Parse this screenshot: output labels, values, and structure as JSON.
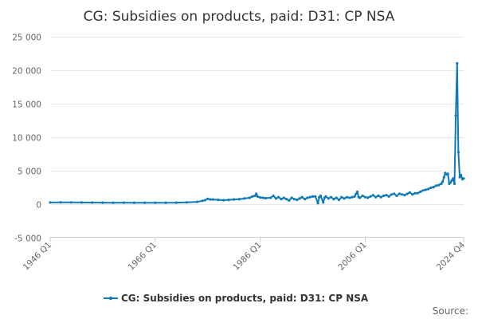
{
  "chart_data": {
    "type": "line",
    "title": "CG: Subsidies on products, paid: D31: CP NSA",
    "xlabel": "",
    "ylabel": "",
    "x_range": [
      "1946 Q1",
      "2024 Q4"
    ],
    "ylim": [
      -5000,
      25000
    ],
    "y_ticks": [
      -5000,
      0,
      5000,
      10000,
      15000,
      20000,
      25000
    ],
    "y_tick_labels": [
      "-5 000",
      "0",
      "5 000",
      "10 000",
      "15 000",
      "20 000",
      "25 000"
    ],
    "x_ticks": [
      {
        "label": "1946 Q1",
        "t": 1946.0
      },
      {
        "label": "1966 Q1",
        "t": 1966.0
      },
      {
        "label": "1986 Q1",
        "t": 1986.0
      },
      {
        "label": "2006 Q1",
        "t": 2006.0
      },
      {
        "label": "2024 Q4",
        "t": 2024.75
      }
    ],
    "grid": true,
    "legend_position": "bottom",
    "series": [
      {
        "name": "CG: Subsidies on products, paid: D31: CP NSA",
        "color": "#0e7ab8",
        "points": [
          [
            1946.0,
            200
          ],
          [
            1948.0,
            230
          ],
          [
            1950.0,
            210
          ],
          [
            1952.0,
            200
          ],
          [
            1954.0,
            190
          ],
          [
            1956.0,
            180
          ],
          [
            1958.0,
            170
          ],
          [
            1960.0,
            180
          ],
          [
            1962.0,
            170
          ],
          [
            1964.0,
            160
          ],
          [
            1966.0,
            170
          ],
          [
            1968.0,
            160
          ],
          [
            1970.0,
            180
          ],
          [
            1972.0,
            230
          ],
          [
            1974.0,
            300
          ],
          [
            1975.0,
            450
          ],
          [
            1975.5,
            550
          ],
          [
            1976.0,
            750
          ],
          [
            1976.5,
            650
          ],
          [
            1977.0,
            650
          ],
          [
            1978.0,
            600
          ],
          [
            1979.0,
            550
          ],
          [
            1980.0,
            600
          ],
          [
            1981.0,
            650
          ],
          [
            1982.0,
            700
          ],
          [
            1983.0,
            800
          ],
          [
            1984.0,
            900
          ],
          [
            1984.5,
            1100
          ],
          [
            1985.0,
            1200
          ],
          [
            1985.25,
            1500
          ],
          [
            1985.5,
            1100
          ],
          [
            1986.0,
            950
          ],
          [
            1986.5,
            900
          ],
          [
            1987.0,
            850
          ],
          [
            1988.0,
            900
          ],
          [
            1988.5,
            1200
          ],
          [
            1989.0,
            800
          ],
          [
            1989.5,
            1000
          ],
          [
            1990.0,
            700
          ],
          [
            1990.5,
            900
          ],
          [
            1991.0,
            700
          ],
          [
            1991.5,
            500
          ],
          [
            1992.0,
            900
          ],
          [
            1992.5,
            700
          ],
          [
            1993.0,
            600
          ],
          [
            1993.5,
            800
          ],
          [
            1994.0,
            1000
          ],
          [
            1994.5,
            700
          ],
          [
            1995.0,
            900
          ],
          [
            1995.5,
            1000
          ],
          [
            1996.0,
            1100
          ],
          [
            1996.5,
            1100
          ],
          [
            1997.0,
            100
          ],
          [
            1997.25,
            1000
          ],
          [
            1997.5,
            1200
          ],
          [
            1998.0,
            200
          ],
          [
            1998.25,
            900
          ],
          [
            1998.5,
            1100
          ],
          [
            1999.0,
            800
          ],
          [
            1999.5,
            1000
          ],
          [
            2000.0,
            700
          ],
          [
            2000.5,
            900
          ],
          [
            2001.0,
            600
          ],
          [
            2001.5,
            1000
          ],
          [
            2002.0,
            800
          ],
          [
            2002.5,
            1000
          ],
          [
            2003.0,
            900
          ],
          [
            2003.5,
            1000
          ],
          [
            2004.0,
            1100
          ],
          [
            2004.25,
            1500
          ],
          [
            2004.5,
            1800
          ],
          [
            2004.75,
            1000
          ],
          [
            2005.0,
            900
          ],
          [
            2005.5,
            1200
          ],
          [
            2006.0,
            1000
          ],
          [
            2006.5,
            900
          ],
          [
            2007.0,
            1100
          ],
          [
            2007.5,
            1300
          ],
          [
            2008.0,
            1000
          ],
          [
            2008.5,
            1200
          ],
          [
            2009.0,
            1000
          ],
          [
            2009.5,
            1200
          ],
          [
            2010.0,
            1300
          ],
          [
            2010.5,
            1100
          ],
          [
            2011.0,
            1400
          ],
          [
            2011.5,
            1500
          ],
          [
            2012.0,
            1200
          ],
          [
            2012.5,
            1500
          ],
          [
            2013.0,
            1400
          ],
          [
            2013.5,
            1300
          ],
          [
            2014.0,
            1500
          ],
          [
            2014.5,
            1700
          ],
          [
            2015.0,
            1400
          ],
          [
            2015.5,
            1600
          ],
          [
            2016.0,
            1600
          ],
          [
            2016.5,
            1800
          ],
          [
            2017.0,
            2000
          ],
          [
            2017.5,
            2100
          ],
          [
            2018.0,
            2200
          ],
          [
            2018.5,
            2400
          ],
          [
            2019.0,
            2500
          ],
          [
            2019.5,
            2700
          ],
          [
            2020.0,
            2800
          ],
          [
            2020.5,
            3000
          ],
          [
            2020.75,
            3300
          ],
          [
            2021.0,
            4000
          ],
          [
            2021.25,
            4600
          ],
          [
            2021.5,
            4400
          ],
          [
            2021.75,
            4500
          ],
          [
            2022.0,
            3000
          ],
          [
            2022.25,
            3200
          ],
          [
            2022.5,
            3500
          ],
          [
            2022.75,
            3800
          ],
          [
            2023.0,
            3000
          ],
          [
            2023.25,
            13200
          ],
          [
            2023.5,
            21000
          ],
          [
            2023.75,
            7700
          ],
          [
            2024.0,
            4000
          ],
          [
            2024.25,
            4300
          ],
          [
            2024.5,
            3700
          ],
          [
            2024.75,
            3800
          ]
        ]
      }
    ]
  },
  "legend": {
    "label": "CG: Subsidies on products, paid: D31: CP NSA"
  },
  "source_label": "Source:"
}
